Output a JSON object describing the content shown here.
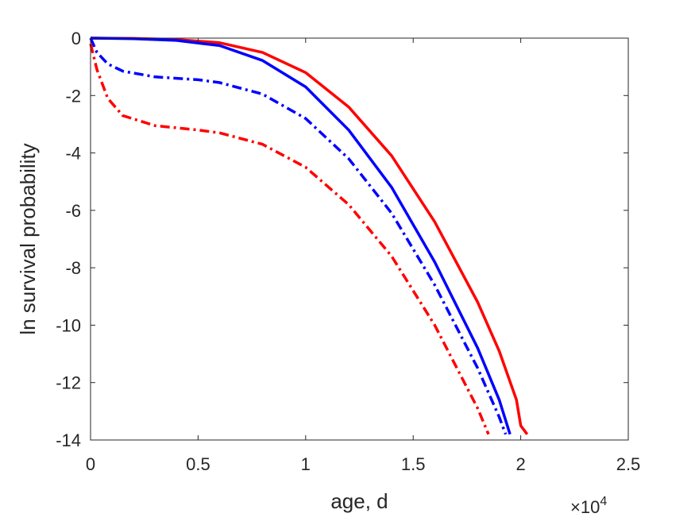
{
  "chart_data": {
    "type": "line",
    "title": "",
    "xlabel": "age, d",
    "ylabel": "ln survival probability",
    "x_exponent_label": "×10",
    "x_exponent_power": "4",
    "xlim": [
      0,
      2.5
    ],
    "ylim": [
      -14,
      0
    ],
    "x_ticks": [
      0,
      0.5,
      1,
      1.5,
      2,
      2.5
    ],
    "x_tick_labels": [
      "0",
      "0.5",
      "1",
      "1.5",
      "2",
      "2.5"
    ],
    "y_ticks": [
      0,
      -2,
      -4,
      -6,
      -8,
      -10,
      -12,
      -14
    ],
    "y_tick_labels": [
      "0",
      "-2",
      "-4",
      "-6",
      "-8",
      "-10",
      "-12",
      "-14"
    ],
    "grid": false,
    "legend": "none",
    "series": [
      {
        "color": "#ff0000",
        "dash": "solid",
        "points": [
          [
            0,
            0
          ],
          [
            0.2,
            -0.01
          ],
          [
            0.4,
            -0.05
          ],
          [
            0.6,
            -0.16
          ],
          [
            0.8,
            -0.5
          ],
          [
            1.0,
            -1.2
          ],
          [
            1.2,
            -2.4
          ],
          [
            1.4,
            -4.1
          ],
          [
            1.6,
            -6.4
          ],
          [
            1.8,
            -9.2
          ],
          [
            1.9,
            -10.9
          ],
          [
            1.98,
            -12.6
          ],
          [
            2.0,
            -13.5
          ],
          [
            2.03,
            -13.8
          ]
        ]
      },
      {
        "color": "#0000ff",
        "dash": "solid",
        "points": [
          [
            0,
            0
          ],
          [
            0.2,
            -0.02
          ],
          [
            0.4,
            -0.08
          ],
          [
            0.6,
            -0.26
          ],
          [
            0.8,
            -0.78
          ],
          [
            1.0,
            -1.7
          ],
          [
            1.2,
            -3.2
          ],
          [
            1.4,
            -5.2
          ],
          [
            1.6,
            -7.8
          ],
          [
            1.8,
            -10.8
          ],
          [
            1.9,
            -12.6
          ],
          [
            1.95,
            -13.8
          ]
        ]
      },
      {
        "color": "#0000ff",
        "dash": "dashdot",
        "points": [
          [
            0,
            0
          ],
          [
            0.03,
            -0.5
          ],
          [
            0.08,
            -0.9
          ],
          [
            0.15,
            -1.15
          ],
          [
            0.3,
            -1.35
          ],
          [
            0.5,
            -1.45
          ],
          [
            0.6,
            -1.55
          ],
          [
            0.8,
            -1.95
          ],
          [
            1.0,
            -2.8
          ],
          [
            1.2,
            -4.2
          ],
          [
            1.4,
            -6.1
          ],
          [
            1.6,
            -8.6
          ],
          [
            1.8,
            -11.5
          ],
          [
            1.9,
            -13.2
          ],
          [
            1.93,
            -13.8
          ]
        ]
      },
      {
        "color": "#ff0000",
        "dash": "dashdot",
        "points": [
          [
            0,
            -0.2
          ],
          [
            0.03,
            -1.1
          ],
          [
            0.08,
            -2.1
          ],
          [
            0.15,
            -2.7
          ],
          [
            0.3,
            -3.05
          ],
          [
            0.5,
            -3.2
          ],
          [
            0.6,
            -3.3
          ],
          [
            0.8,
            -3.7
          ],
          [
            1.0,
            -4.5
          ],
          [
            1.2,
            -5.8
          ],
          [
            1.4,
            -7.6
          ],
          [
            1.6,
            -10.0
          ],
          [
            1.8,
            -12.9
          ],
          [
            1.85,
            -13.8
          ]
        ]
      }
    ]
  }
}
